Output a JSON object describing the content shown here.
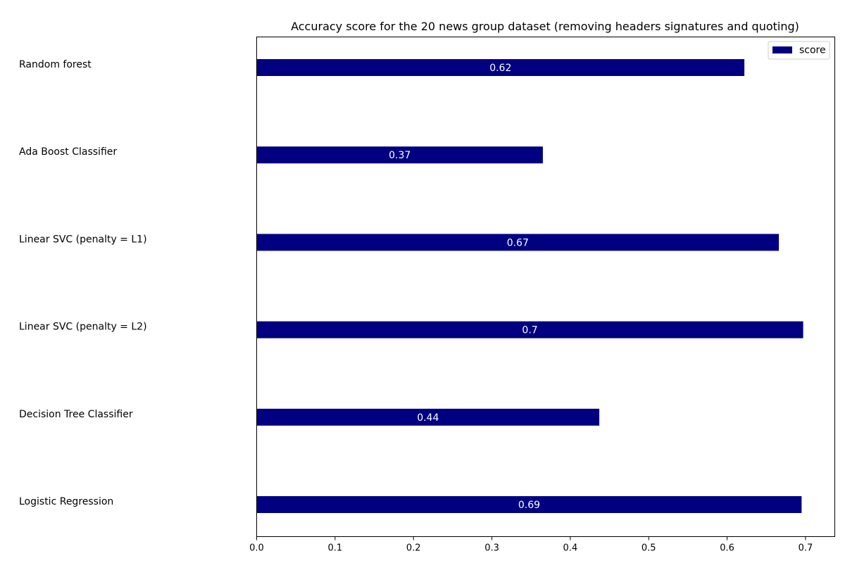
{
  "chart_data": {
    "type": "bar",
    "orientation": "horizontal",
    "title": "Accuracy score for the 20 news group dataset (removing headers signatures and quoting)",
    "xlabel": "",
    "ylabel": "",
    "categories": [
      "Random forest",
      "Ada Boost Classifier",
      "Linear SVC (penalty = L1)",
      "Linear SVC (penalty = L2)",
      "Decision Tree Classifier",
      "Logistic Regression"
    ],
    "series": [
      {
        "name": "score",
        "values": [
          0.622,
          0.365,
          0.666,
          0.697,
          0.437,
          0.695
        ],
        "labels": [
          "0.62",
          "0.37",
          "0.67",
          "0.7",
          "0.44",
          "0.69"
        ]
      }
    ],
    "xlim": [
      0,
      0.73
    ],
    "xticks": [
      0.0,
      0.1,
      0.2,
      0.3,
      0.4,
      0.5,
      0.6,
      0.7
    ],
    "xtick_labels": [
      "0.0",
      "0.1",
      "0.2",
      "0.3",
      "0.4",
      "0.5",
      "0.6",
      "0.7"
    ],
    "grid": false,
    "legend_position": "top-right",
    "colors": {
      "bar": "#000080",
      "bar_label": "#ffffff",
      "axis": "#000000"
    }
  }
}
